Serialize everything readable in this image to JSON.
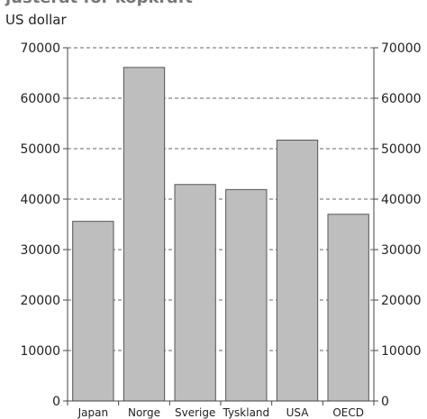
{
  "header": {
    "title": "justerat for kopkraft",
    "unit": "US dollar"
  },
  "chart_data": {
    "type": "bar",
    "title": "justerat for kopkraft",
    "ylabel": "US dollar",
    "xlabel": "",
    "categories": [
      "Japan",
      "Norge",
      "Sverige",
      "Tyskland",
      "USA",
      "OECD"
    ],
    "values": [
      35600,
      66100,
      42900,
      41900,
      51700,
      37000
    ],
    "ylim": [
      0,
      70000
    ],
    "yticks": [
      0,
      10000,
      20000,
      30000,
      40000,
      50000,
      60000,
      70000
    ],
    "ytick_labels": [
      "0",
      "10000",
      "20000",
      "30000",
      "40000",
      "50000",
      "60000",
      "70000"
    ],
    "grid": true,
    "legend": "none",
    "colors": {
      "bar_fill": "#bebebe",
      "bar_stroke": "#555555",
      "grid": "#666666",
      "axis": "#444444"
    }
  }
}
